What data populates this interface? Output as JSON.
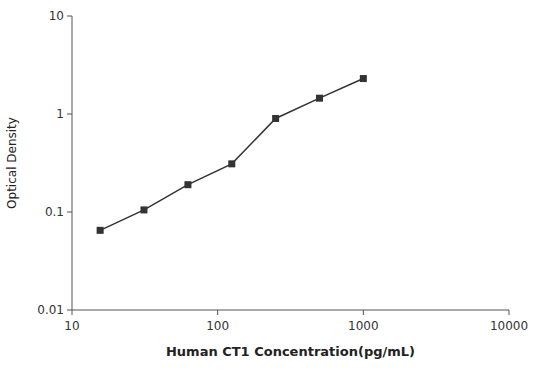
{
  "chart_data": {
    "type": "line",
    "xlabel": "Human CT1 Concentration(pg/mL)",
    "ylabel": "Optical Density",
    "x": [
      15.6,
      31.2,
      62.5,
      125,
      250,
      500,
      1000
    ],
    "values": [
      0.065,
      0.105,
      0.19,
      0.31,
      0.9,
      1.45,
      2.3
    ],
    "color": "#333333",
    "marker": "square",
    "log": true,
    "grid": false,
    "xlim": [
      10,
      10000
    ],
    "ylim": [
      0.01,
      10
    ],
    "xticks": [
      10,
      100,
      1000,
      10000
    ],
    "yticks": [
      0.01,
      0.1,
      1,
      10
    ]
  }
}
